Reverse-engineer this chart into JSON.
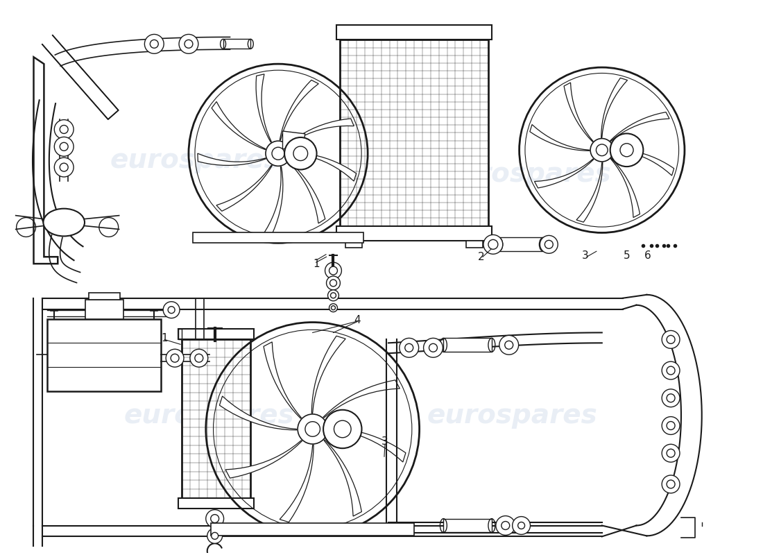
{
  "background_color": "#ffffff",
  "line_color": "#1a1a1a",
  "line_width": 1.0,
  "fig_width": 11.0,
  "fig_height": 8.0,
  "dpi": 100,
  "watermark_text": "eurospares",
  "watermark_color": "#c8d4e8",
  "watermark_alpha": 0.35
}
